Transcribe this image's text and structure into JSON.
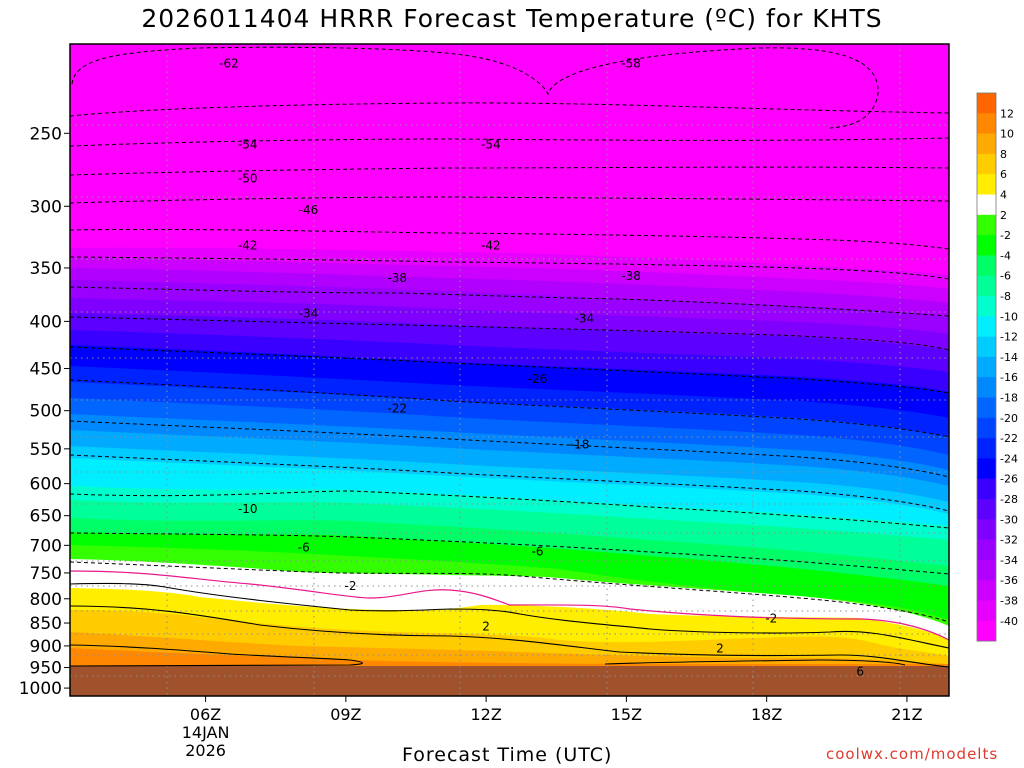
{
  "title": "2026011404 HRRR Forecast Temperature (ºC) for KHTS",
  "credit": "coolwx.com/modelts",
  "colors": {
    "credit": "#e0392d",
    "ground": "#a0522d",
    "freezing_line": "#e8198c"
  },
  "chart_data": {
    "type": "heatmap",
    "subtype": "time-pressure cross-section with filled temperature contours",
    "xlabel": "Forecast Time (UTC)",
    "ylabel": "",
    "x_ticks": [
      "06Z",
      "09Z",
      "12Z",
      "15Z",
      "18Z",
      "21Z"
    ],
    "x_date_label": [
      "14JAN",
      "2026"
    ],
    "x_range_hours_utc": [
      3.1,
      21.9
    ],
    "y_ticks": [
      250,
      300,
      350,
      400,
      450,
      500,
      550,
      600,
      650,
      700,
      750,
      800,
      850,
      900,
      950,
      1000
    ],
    "y_range_hpa": [
      200,
      1020
    ],
    "y_scale": "log",
    "grid": true,
    "legend": {
      "placement": "right",
      "labels": [
        "12",
        "10",
        "8",
        "6",
        "4",
        "2",
        "-2",
        "-4",
        "-6",
        "-8",
        "-10",
        "-12",
        "-14",
        "-16",
        "-18",
        "-20",
        "-22",
        "-24",
        "-26",
        "-28",
        "-30",
        "-32",
        "-34",
        "-36",
        "-38",
        "-40"
      ]
    },
    "contour_labels": [
      {
        "text": "-62",
        "t": 6.5,
        "p": 210
      },
      {
        "text": "-58",
        "t": 15.1,
        "p": 210
      },
      {
        "text": "-54",
        "t": 6.9,
        "p": 257
      },
      {
        "text": "-54",
        "t": 12.1,
        "p": 257
      },
      {
        "text": "-50",
        "t": 6.9,
        "p": 280
      },
      {
        "text": "-46",
        "t": 8.2,
        "p": 303
      },
      {
        "text": "-42",
        "t": 6.9,
        "p": 331
      },
      {
        "text": "-42",
        "t": 12.1,
        "p": 331
      },
      {
        "text": "-38",
        "t": 10.1,
        "p": 359
      },
      {
        "text": "-38",
        "t": 15.1,
        "p": 357
      },
      {
        "text": "-34",
        "t": 8.2,
        "p": 392
      },
      {
        "text": "-34",
        "t": 14.1,
        "p": 397
      },
      {
        "text": "-26",
        "t": 13.1,
        "p": 462
      },
      {
        "text": "-22",
        "t": 10.1,
        "p": 497
      },
      {
        "text": "-18",
        "t": 14.0,
        "p": 544
      },
      {
        "text": "-10",
        "t": 6.9,
        "p": 639
      },
      {
        "text": "-6",
        "t": 8.1,
        "p": 704
      },
      {
        "text": "-6",
        "t": 13.1,
        "p": 711
      },
      {
        "text": "-2",
        "t": 9.1,
        "p": 775
      },
      {
        "text": "2",
        "t": 12.0,
        "p": 857
      },
      {
        "text": "-2",
        "t": 18.1,
        "p": 840
      },
      {
        "text": "2",
        "t": 17.0,
        "p": 906
      },
      {
        "text": "6",
        "t": 20.0,
        "p": 959
      }
    ]
  }
}
